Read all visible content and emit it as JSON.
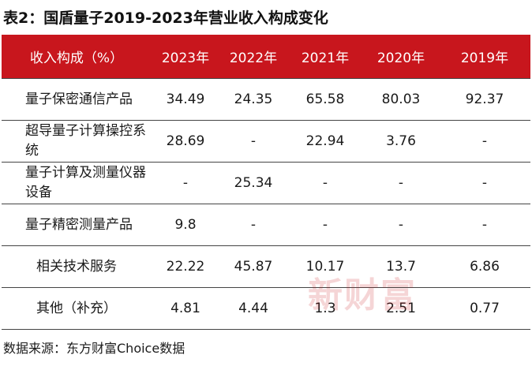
{
  "title": "表2：国盾量子2019-2023年营业收入构成变化",
  "table": {
    "headers": [
      "收入构成（%）",
      "2023年",
      "2022年",
      "2021年",
      "2020年",
      "2019年"
    ],
    "rows": [
      [
        "量子保密通信产品",
        "34.49",
        "24.35",
        "65.58",
        "80.03",
        "92.37"
      ],
      [
        "超导量子计算操控系统",
        "28.69",
        "-",
        "22.94",
        "3.76",
        "-"
      ],
      [
        "量子计算及测量仪器设备",
        "-",
        "25.34",
        "-",
        "-",
        "-"
      ],
      [
        "量子精密测量产品",
        "9.8",
        "-",
        "-",
        "-",
        "-"
      ],
      [
        "相关技术服务",
        "22.22",
        "45.87",
        "10.17",
        "13.7",
        "6.86"
      ],
      [
        "其他（补充）",
        "4.81",
        "4.44",
        "1.3",
        "2.51",
        "0.77"
      ]
    ]
  },
  "source": "数据来源：东方财富Choice数据",
  "watermark": "新财富",
  "colors": {
    "header_bg": "#c8161d",
    "header_text": "#ffffff"
  }
}
